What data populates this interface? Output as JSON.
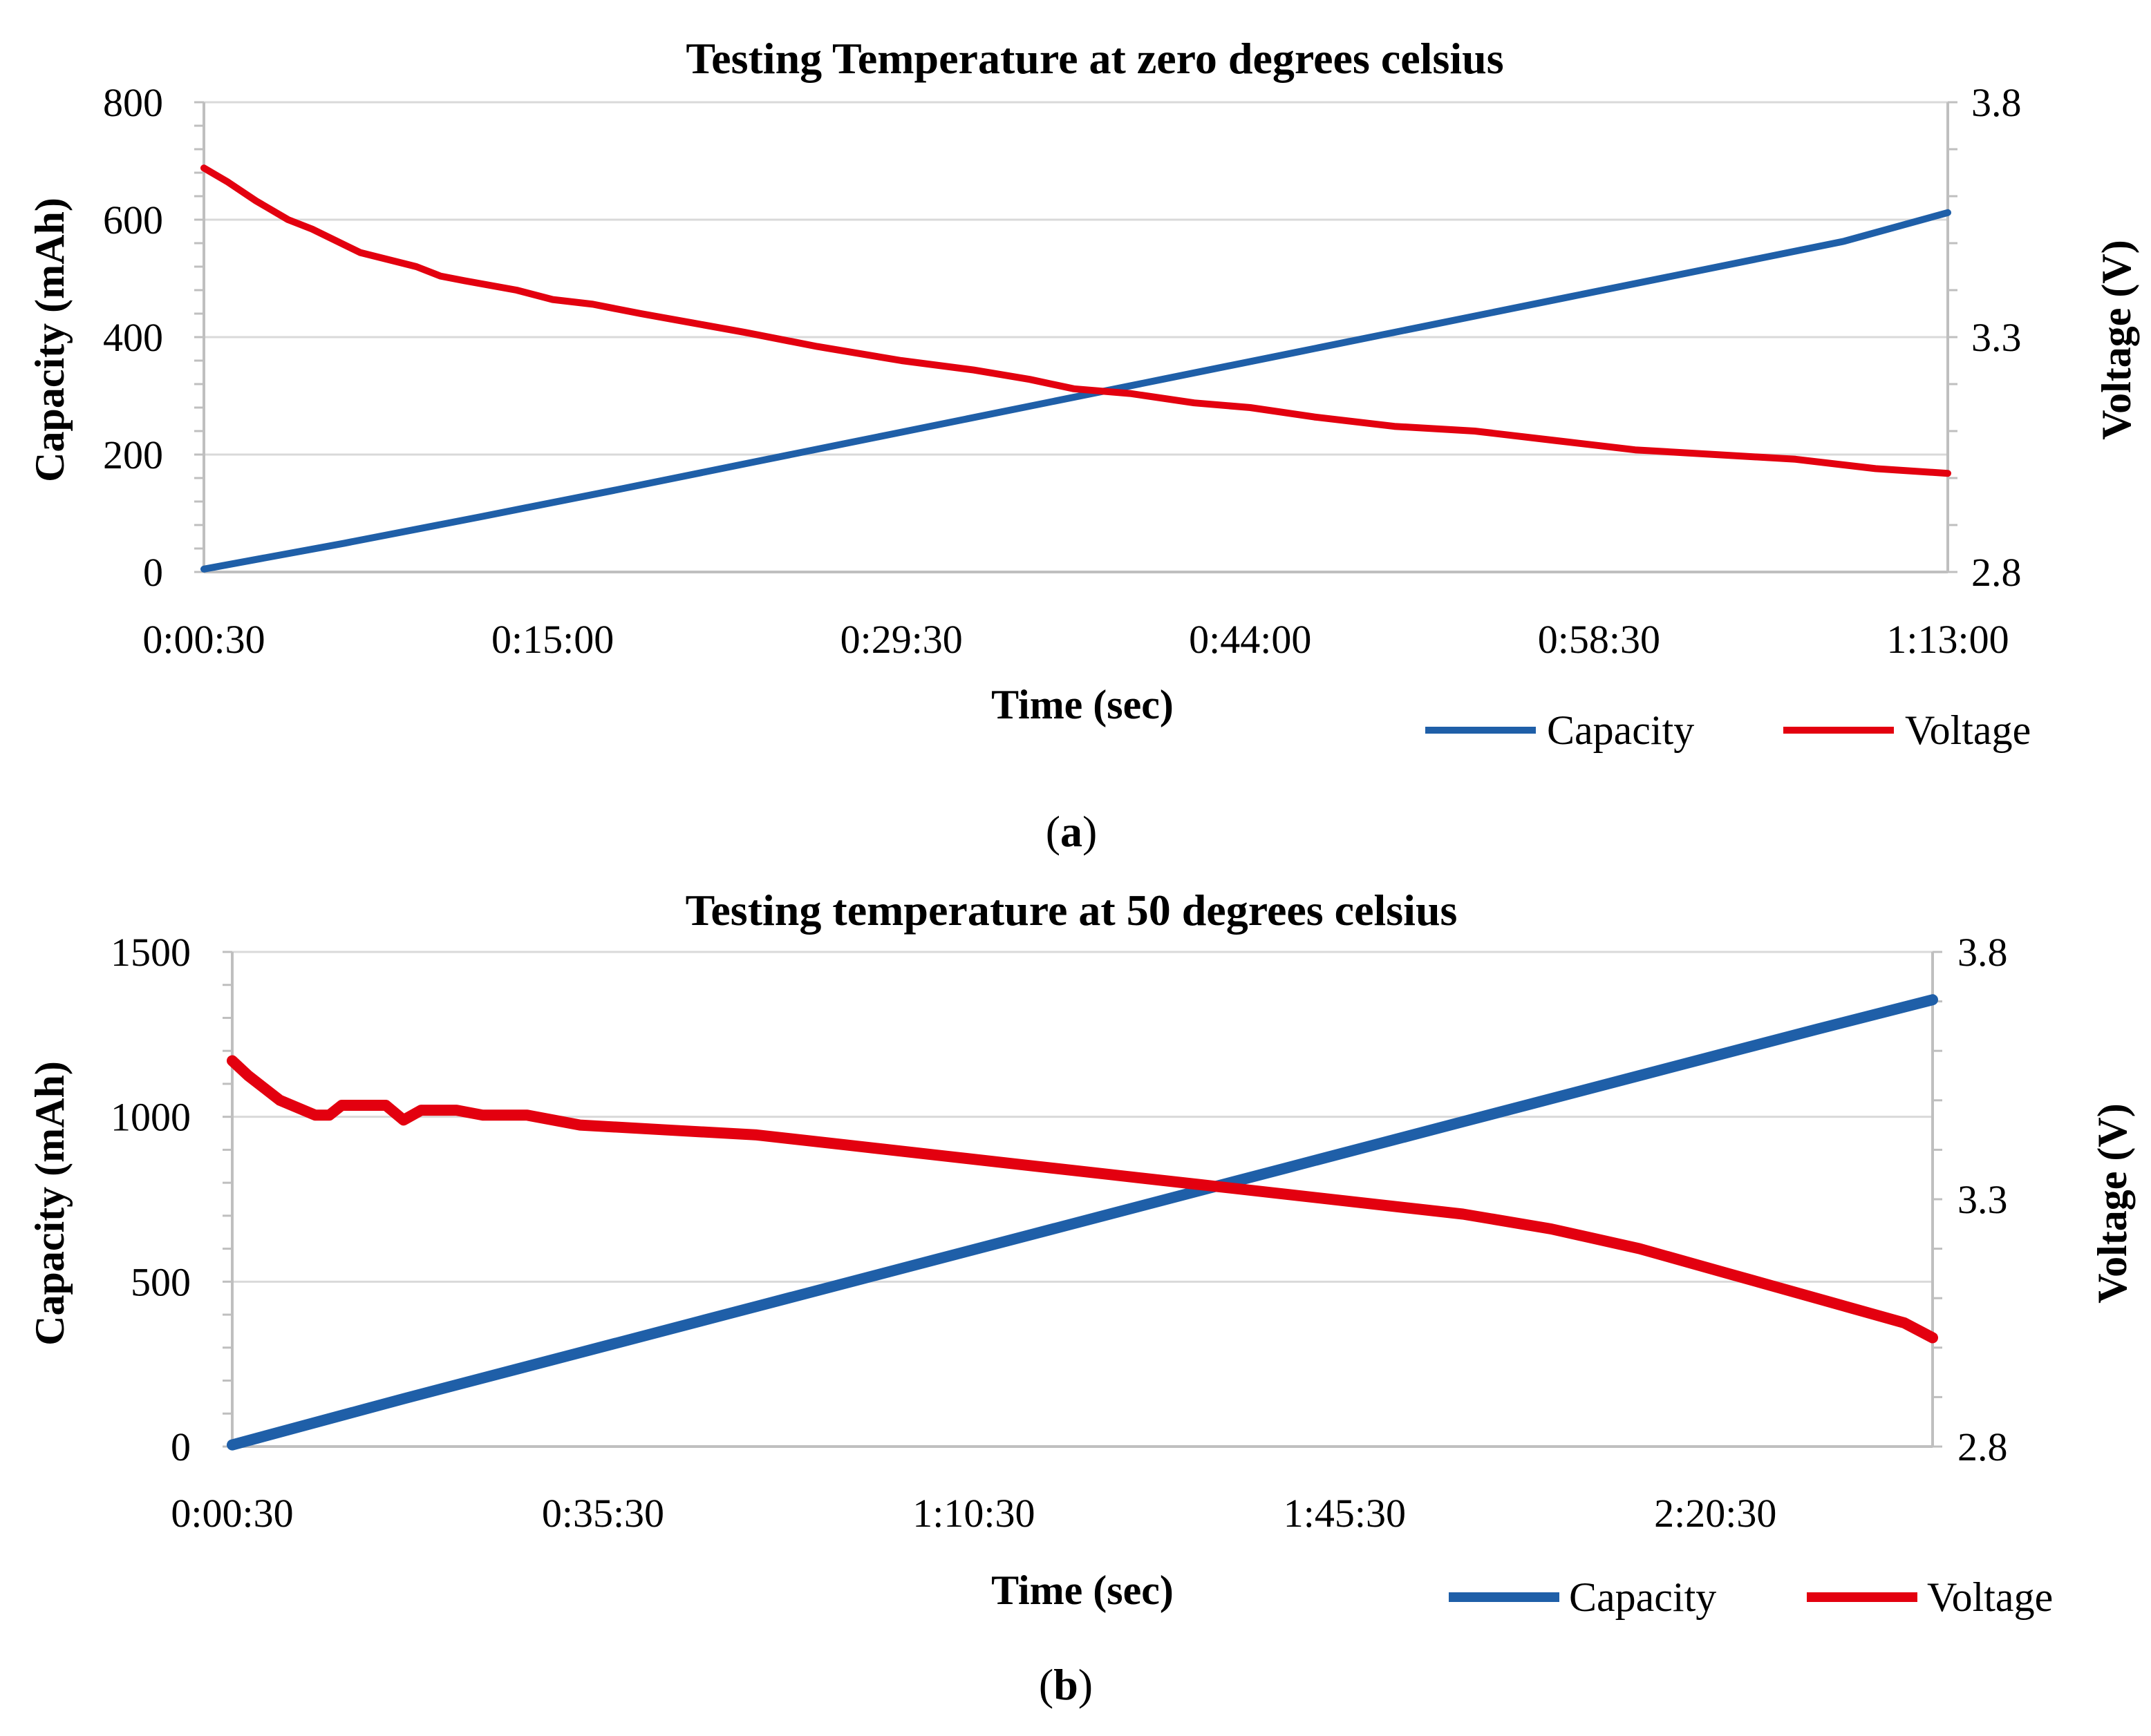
{
  "captions": {
    "a_open": "(",
    "a_letter": "a",
    "a_close": ")",
    "b_open": "(",
    "b_letter": "b",
    "b_close": ")"
  },
  "colors": {
    "capacity": "#1f5fa8",
    "voltage": "#e3000f",
    "gridline": "#d9d9d9",
    "axis": "#bfbfbf"
  },
  "chart_data": [
    {
      "type": "line",
      "title": "Testing Temperature at zero degrees celsius",
      "xlabel": "Time (sec)",
      "ylabel": "Capacity (mAh)",
      "y2label": "Voltage (V)",
      "x_tick_labels": [
        "0:00:30",
        "0:15:00",
        "0:29:30",
        "0:44:00",
        "0:58:30",
        "1:13:00"
      ],
      "x_tick_seconds": [
        30,
        900,
        1770,
        2640,
        3510,
        4380
      ],
      "xlim": [
        30,
        4380
      ],
      "ylim": [
        0,
        800
      ],
      "y_ticks": [
        "800",
        "600",
        "400",
        "200",
        "0"
      ],
      "y_tick_values": [
        800,
        600,
        400,
        200,
        0
      ],
      "y2lim": [
        2.8,
        3.8
      ],
      "y2_ticks": [
        "3.8",
        "3.3",
        "2.8"
      ],
      "y2_tick_values": [
        3.8,
        3.3,
        2.8
      ],
      "legend": [
        "Capacity",
        "Voltage"
      ],
      "legend_position": "bottom-right",
      "series": [
        {
          "name": "Capacity",
          "axis": "left",
          "x": [
            30,
            380,
            720,
            1060,
            1400,
            1740,
            2080,
            2420,
            2760,
            3100,
            3440,
            3780,
            4120,
            4380
          ],
          "y": [
            5,
            49,
            94,
            140,
            187,
            234,
            281,
            328,
            375,
            422,
            469,
            516,
            563,
            612
          ]
        },
        {
          "name": "Voltage",
          "axis": "left2",
          "x": [
            30,
            90,
            160,
            240,
            300,
            420,
            560,
            620,
            680,
            810,
            900,
            1000,
            1120,
            1250,
            1380,
            1560,
            1770,
            1950,
            2090,
            2200,
            2340,
            2500,
            2640,
            2800,
            3000,
            3200,
            3400,
            3600,
            3800,
            4000,
            4200,
            4380
          ],
          "y": [
            3.66,
            3.63,
            3.59,
            3.55,
            3.53,
            3.48,
            3.45,
            3.43,
            3.42,
            3.4,
            3.38,
            3.37,
            3.35,
            3.33,
            3.31,
            3.28,
            3.25,
            3.23,
            3.21,
            3.19,
            3.18,
            3.16,
            3.15,
            3.13,
            3.11,
            3.1,
            3.08,
            3.06,
            3.05,
            3.04,
            3.02,
            3.01
          ]
        }
      ]
    },
    {
      "type": "line",
      "title": "Testing temperature at 50 degrees celsius",
      "xlabel": "Time (sec)",
      "ylabel": "Capacity (mAh)",
      "y2label": "Voltage (V)",
      "x_tick_labels": [
        "0:00:30",
        "0:35:30",
        "1:10:30",
        "1:45:30",
        "2:20:30"
      ],
      "x_tick_seconds": [
        30,
        2130,
        4230,
        6330,
        8430
      ],
      "xlim": [
        30,
        9660
      ],
      "ylim": [
        0,
        1500
      ],
      "y_ticks": [
        "1500",
        "1000",
        "500",
        "0"
      ],
      "y_tick_values": [
        1500,
        1000,
        500,
        0
      ],
      "y2lim": [
        2.8,
        3.8
      ],
      "y2_ticks": [
        "3.8",
        "3.3",
        "2.8"
      ],
      "y2_tick_values": [
        3.8,
        3.3,
        2.8
      ],
      "legend": [
        "Capacity",
        "Voltage"
      ],
      "legend_position": "bottom-right",
      "series": [
        {
          "name": "Capacity",
          "axis": "left",
          "x": [
            30,
            1000,
            2000,
            3000,
            4000,
            5000,
            6000,
            7000,
            8000,
            9000,
            9660
          ],
          "y": [
            5,
            145,
            285,
            425,
            565,
            705,
            845,
            985,
            1125,
            1265,
            1355
          ]
        },
        {
          "name": "Voltage",
          "axis": "right",
          "x": [
            30,
            120,
            300,
            500,
            580,
            650,
            800,
            900,
            1000,
            1100,
            1160,
            1300,
            1450,
            1700,
            2000,
            2500,
            3000,
            3500,
            4000,
            4500,
            5000,
            5500,
            6000,
            6500,
            7000,
            7500,
            8000,
            8500,
            9000,
            9300,
            9500,
            9660
          ],
          "y": [
            3.58,
            3.55,
            3.5,
            3.47,
            3.47,
            3.49,
            3.49,
            3.49,
            3.46,
            3.48,
            3.48,
            3.48,
            3.47,
            3.47,
            3.45,
            3.44,
            3.43,
            3.41,
            3.39,
            3.37,
            3.35,
            3.33,
            3.31,
            3.29,
            3.27,
            3.24,
            3.2,
            3.15,
            3.1,
            3.07,
            3.05,
            3.02
          ]
        }
      ]
    }
  ]
}
